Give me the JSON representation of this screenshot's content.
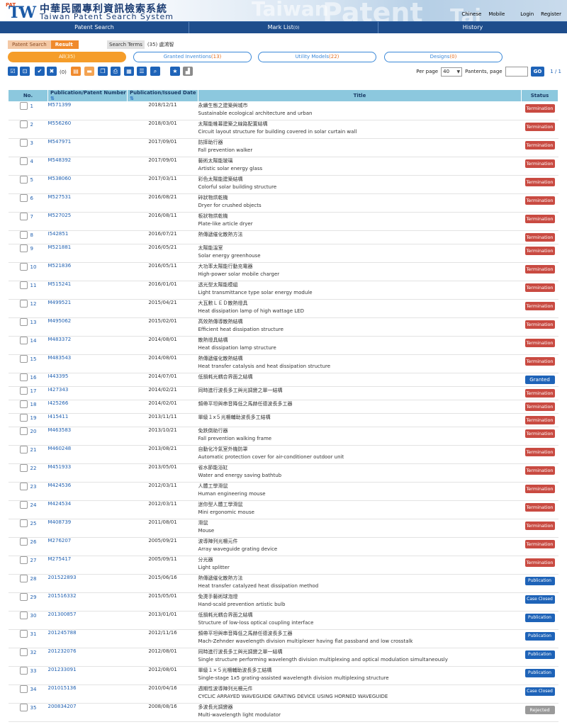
{
  "header": {
    "logo_tag": "PAT",
    "logo_mark": "TW",
    "title_cn": "中華民國專利資訊檢索系統",
    "title_en": "Taiwan Patent Search System",
    "watermark_1": "Taiwan",
    "watermark_2": "Patent",
    "watermark_3": "Tai",
    "links": [
      "Chinese",
      "Mobile",
      "Login",
      "Register"
    ]
  },
  "nav": {
    "patent_search": "Patent Search",
    "mark_list": "Mark List",
    "mark_list_count": "(0)",
    "history": "History"
  },
  "crumb": {
    "step1": "Patent Search",
    "step2": "Result",
    "search_terms_label": "Search Terms",
    "search_terms_value": "(35) 盧鴻智"
  },
  "filters": [
    {
      "label": "All",
      "count": "(35)",
      "active": true
    },
    {
      "label": "Granted Inventions",
      "count": "(13)",
      "active": false
    },
    {
      "label": "Utility Models",
      "count": "(22)",
      "active": false
    },
    {
      "label": "Designs",
      "count": "(0)",
      "active": false
    }
  ],
  "toolbar": {
    "selected_count": "(0)",
    "per_page_label": "Per page",
    "per_page_value": "40",
    "pantents_label": "Pantents, page",
    "page_input": "",
    "go_label": "GO",
    "page_count": "1 / 1"
  },
  "table": {
    "headers": {
      "no": "No.",
      "pub": "Publication/Patent Number",
      "date": "Publication/Issued Date",
      "title": "Title",
      "status": "Status"
    },
    "rows": [
      {
        "no": "1",
        "pub": "M571399",
        "date": "2018/12/11",
        "cn": "永續生態之建築與城市",
        "en": "Sustainable ecological architecture and urban",
        "status": "Termination"
      },
      {
        "no": "2",
        "pub": "M556260",
        "date": "2018/03/01",
        "cn": "太陽能帷幕建築之線路配置結構",
        "en": "Circuit layout structure for building covered in solar curtain wall",
        "status": "Termination"
      },
      {
        "no": "3",
        "pub": "M547971",
        "date": "2017/09/01",
        "cn": "防摔助行器",
        "en": "Fall prevention walker",
        "status": "Termination"
      },
      {
        "no": "4",
        "pub": "M548392",
        "date": "2017/09/01",
        "cn": "藝術太陽能玻璃",
        "en": "Artistic solar energy glass",
        "status": "Termination"
      },
      {
        "no": "5",
        "pub": "M538060",
        "date": "2017/03/11",
        "cn": "彩色太陽能建築結構",
        "en": "Colorful solar building structure",
        "status": "Termination"
      },
      {
        "no": "6",
        "pub": "M527531",
        "date": "2016/08/21",
        "cn": "碎狀物烘乾機",
        "en": "Dryer for crushed objects",
        "status": "Termination"
      },
      {
        "no": "7",
        "pub": "M527025",
        "date": "2016/08/11",
        "cn": "板狀物烘乾機",
        "en": "Plate-like article dryer",
        "status": "Termination"
      },
      {
        "no": "8",
        "pub": "I542851",
        "date": "2016/07/21",
        "cn": "熱傳遞催化散熱方法",
        "en": "",
        "status": "Termination"
      },
      {
        "no": "9",
        "pub": "M521881",
        "date": "2016/05/21",
        "cn": "太陽能溫室",
        "en": "Solar energy greenhouse",
        "status": "Termination"
      },
      {
        "no": "10",
        "pub": "M521836",
        "date": "2016/05/11",
        "cn": "大功率太陽能行動充電器",
        "en": "High-power solar mobile charger",
        "status": "Termination"
      },
      {
        "no": "11",
        "pub": "M515241",
        "date": "2016/01/01",
        "cn": "透光型太陽能模組",
        "en": "Light transmittance type solar energy module",
        "status": "Termination"
      },
      {
        "no": "12",
        "pub": "M499521",
        "date": "2015/04/21",
        "cn": "大瓦數ＬＥＤ散熱燈具",
        "en": "Heat dissipation lamp of high wattage LED",
        "status": "Termination"
      },
      {
        "no": "13",
        "pub": "M495062",
        "date": "2015/02/01",
        "cn": "高效熱傳導散熱結構",
        "en": "Efficient heat dissipation structure",
        "status": "Termination"
      },
      {
        "no": "14",
        "pub": "M483372",
        "date": "2014/08/01",
        "cn": "散熱燈具結構",
        "en": "Heat dissipation lamp structure",
        "status": "Termination"
      },
      {
        "no": "15",
        "pub": "M483543",
        "date": "2014/08/01",
        "cn": "熱傳遞催化散熱結構",
        "en": "Heat transfer catalysis and heat dissipation structure",
        "status": "Termination"
      },
      {
        "no": "16",
        "pub": "I443395",
        "date": "2014/07/01",
        "cn": "低損耗光耦合界面之結構",
        "en": "",
        "status": "Granted"
      },
      {
        "no": "17",
        "pub": "I427343",
        "date": "2014/02/21",
        "cn": "同時進行波長多工與光調變之單一結構",
        "en": "",
        "status": "Termination"
      },
      {
        "no": "18",
        "pub": "I425266",
        "date": "2014/02/01",
        "cn": "頻帶平坦與串音降低之馬赫任德波長多工器",
        "en": "",
        "status": "Termination"
      },
      {
        "no": "19",
        "pub": "I415411",
        "date": "2013/11/11",
        "cn": "單級１x５光柵輔助波長多工結構",
        "en": "",
        "status": "Termination"
      },
      {
        "no": "20",
        "pub": "M463583",
        "date": "2013/10/21",
        "cn": "免跌倒助行器",
        "en": "Fall prevention walking frame",
        "status": "Termination"
      },
      {
        "no": "21",
        "pub": "M460248",
        "date": "2013/08/21",
        "cn": "自動化冷氣室外機防罩",
        "en": "Automatic protection cover for air-conditioner outdoor unit",
        "status": "Termination"
      },
      {
        "no": "22",
        "pub": "M451933",
        "date": "2013/05/01",
        "cn": "省水節能浴缸",
        "en": "Water and energy saving bathtub",
        "status": "Termination"
      },
      {
        "no": "23",
        "pub": "M424536",
        "date": "2012/03/11",
        "cn": "人體工學滑鼠",
        "en": "Human engineering mouse",
        "status": "Termination"
      },
      {
        "no": "24",
        "pub": "M424534",
        "date": "2012/03/11",
        "cn": "迷你型人體工學滑鼠",
        "en": "Mini ergonomic mouse",
        "status": "Termination"
      },
      {
        "no": "25",
        "pub": "M408739",
        "date": "2011/08/01",
        "cn": "滑鼠",
        "en": "Mouse",
        "status": "Termination"
      },
      {
        "no": "26",
        "pub": "M276207",
        "date": "2005/09/21",
        "cn": "波導陣列光柵元件",
        "en": "Array waveguide grating device",
        "status": "Termination"
      },
      {
        "no": "27",
        "pub": "M275417",
        "date": "2005/09/11",
        "cn": "分光器",
        "en": "Light splitter",
        "status": "Termination"
      },
      {
        "no": "28",
        "pub": "201522893",
        "date": "2015/06/16",
        "cn": "熱傳遞催化散熱方法",
        "en": "Heat transfer catalyzed heat dissipation method",
        "status": "Publication"
      },
      {
        "no": "29",
        "pub": "201516332",
        "date": "2015/05/01",
        "cn": "免燙手藝術球泡燈",
        "en": "Hand-scald prevention artistic bulb",
        "status": "Case Closed"
      },
      {
        "no": "30",
        "pub": "201300857",
        "date": "2013/01/01",
        "cn": "低損耗光耦合界面之結構",
        "en": "Structure of low-loss optical coupling interface",
        "status": "Publication"
      },
      {
        "no": "31",
        "pub": "201245788",
        "date": "2012/11/16",
        "cn": "頻帶平坦與串音降低之馬赫任德波長多工器",
        "en": "Mach-Zehnder wavelength division multiplexer having flat passband and low crosstalk",
        "status": "Publication"
      },
      {
        "no": "32",
        "pub": "201232076",
        "date": "2012/08/01",
        "cn": "同時進行波長多工與光調變之單一結構",
        "en": "Single structure performing wavelength division multiplexing and optical modulation simultaneously",
        "status": "Publication"
      },
      {
        "no": "33",
        "pub": "201233091",
        "date": "2012/08/01",
        "cn": "單級１×５光柵輔助波長多工結構",
        "en": "Single-stage 1x5 grating-assisted wavelength division multiplexing structure",
        "status": "Publication"
      },
      {
        "no": "34",
        "pub": "201015136",
        "date": "2010/04/16",
        "cn": "週期性波導陣列光柵元件",
        "en": "CYCLIC ARRAYED WAVEGUIDE GRATING DEVICE USING HORNED WAVEGUIDE",
        "status": "Case Closed"
      },
      {
        "no": "35",
        "pub": "200834207",
        "date": "2008/08/16",
        "cn": "多波長光調變器",
        "en": "Multi-wavelength light modulator",
        "status": "Rejected"
      }
    ]
  },
  "colors": {
    "termination": "#c94a41",
    "blue": "#1e63b8",
    "rejected": "#9a9a9a",
    "accent": "#f08a2c",
    "nav": "#1e4d8c",
    "table_header": "#8cc8de"
  }
}
